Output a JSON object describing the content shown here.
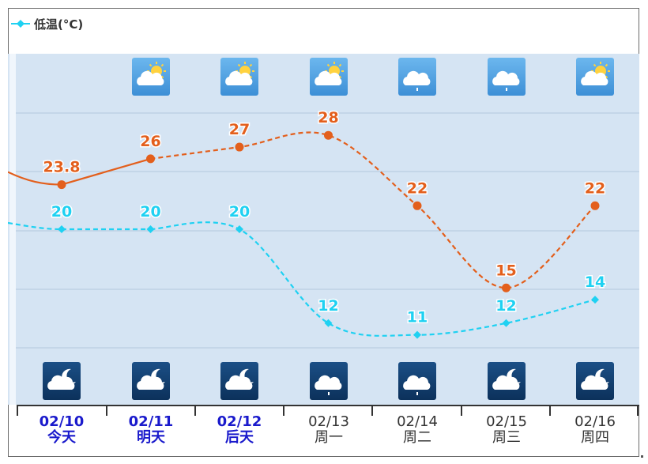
{
  "legend": {
    "label": "低温(°C)",
    "color": "#1fd1f2"
  },
  "colors": {
    "high": "#e35f1c",
    "low": "#1fd1f2",
    "plot_bg": "#d5e4f3",
    "grid": "#b4c9de",
    "highlight_text": "#1a1acc"
  },
  "days": [
    {
      "date": "02/10",
      "weekday": "今天",
      "highlight": true,
      "day_icon": "sunny-cloudy-icon",
      "night_icon": "moon-cloudy-icon"
    },
    {
      "date": "02/11",
      "weekday": "明天",
      "highlight": true,
      "day_icon": "sunny-cloudy-icon",
      "night_icon": "moon-cloudy-icon"
    },
    {
      "date": "02/12",
      "weekday": "后天",
      "highlight": true,
      "day_icon": "sunny-cloudy-icon",
      "night_icon": "moon-cloudy-icon"
    },
    {
      "date": "02/13",
      "weekday": "周一",
      "highlight": false,
      "day_icon": "sunny-cloudy-icon",
      "night_icon": "cloud-rain-icon"
    },
    {
      "date": "02/14",
      "weekday": "周二",
      "highlight": false,
      "day_icon": "cloud-rain-icon",
      "night_icon": "cloud-rain-icon"
    },
    {
      "date": "02/15",
      "weekday": "周三",
      "highlight": false,
      "day_icon": "cloud-rain-icon",
      "night_icon": "moon-cloudy-icon"
    },
    {
      "date": "02/16",
      "weekday": "周四",
      "highlight": false,
      "day_icon": "sunny-cloudy-icon",
      "night_icon": "moon-cloudy-icon"
    }
  ],
  "chart_data": {
    "type": "line",
    "categories": [
      "02/10",
      "02/11",
      "02/12",
      "02/13",
      "02/14",
      "02/15",
      "02/16"
    ],
    "series": [
      {
        "key": "high",
        "values": [
          23.8,
          26,
          27,
          28,
          22,
          15,
          22
        ],
        "labels": [
          "23.8",
          "26",
          "27",
          "28",
          "22",
          "15",
          "22"
        ],
        "color": "#e35f1c",
        "marker": "circle"
      },
      {
        "name": "低温(°C)",
        "key": "low",
        "values": [
          20,
          20,
          20,
          12,
          11,
          12,
          14
        ],
        "labels": [
          "20",
          "20",
          "20",
          "12",
          "11",
          "12",
          "14"
        ],
        "color": "#1fd1f2",
        "marker": "diamond"
      }
    ],
    "ylim": [
      5,
      35
    ],
    "grid": true,
    "legend_position": "top-left"
  }
}
